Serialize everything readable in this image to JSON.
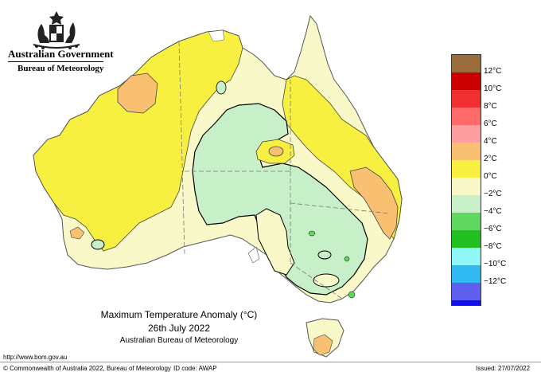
{
  "header": {
    "government": "Australian Government",
    "bureau": "Bureau of Meteorology",
    "crest_icon": "coat-of-arms-icon"
  },
  "map": {
    "title": "Maximum Temperature Anomaly (°C)",
    "date": "26th July 2022",
    "source": "Australian Bureau of Meteorology",
    "region": "Australia",
    "colors": {
      "ocean": "#ffffff",
      "land_outline": "#555555",
      "state_borders": "#777777",
      "contour_zero": "#000000"
    }
  },
  "legend": {
    "items": [
      {
        "label": "",
        "color": "#9a6b3b"
      },
      {
        "label": "12°C",
        "color": "#cc0000"
      },
      {
        "label": "10°C",
        "color": "#f03030"
      },
      {
        "label": "8°C",
        "color": "#ff6a6a"
      },
      {
        "label": "6°C",
        "color": "#ff9e9e"
      },
      {
        "label": "4°C",
        "color": "#f8c070"
      },
      {
        "label": "2°C",
        "color": "#f8f040"
      },
      {
        "label": "0°C",
        "color": "#f8f8c8"
      },
      {
        "label": "−2°C",
        "color": "#c8f0c8"
      },
      {
        "label": "−4°C",
        "color": "#60d860"
      },
      {
        "label": "−6°C",
        "color": "#20c020"
      },
      {
        "label": "−8°C",
        "color": "#90f8f8"
      },
      {
        "label": "−10°C",
        "color": "#30b8f0"
      },
      {
        "label": "−12°C",
        "color": "#6060f0"
      },
      {
        "label": "",
        "color": "#1010f0"
      }
    ]
  },
  "footer": {
    "url": "http://www.bom.gov.au",
    "copyright": "© Commonwealth of Australia 2022, Bureau of Meteorology",
    "id_code": "ID code: AWAP",
    "issued": "Issued: 27/07/2022"
  }
}
